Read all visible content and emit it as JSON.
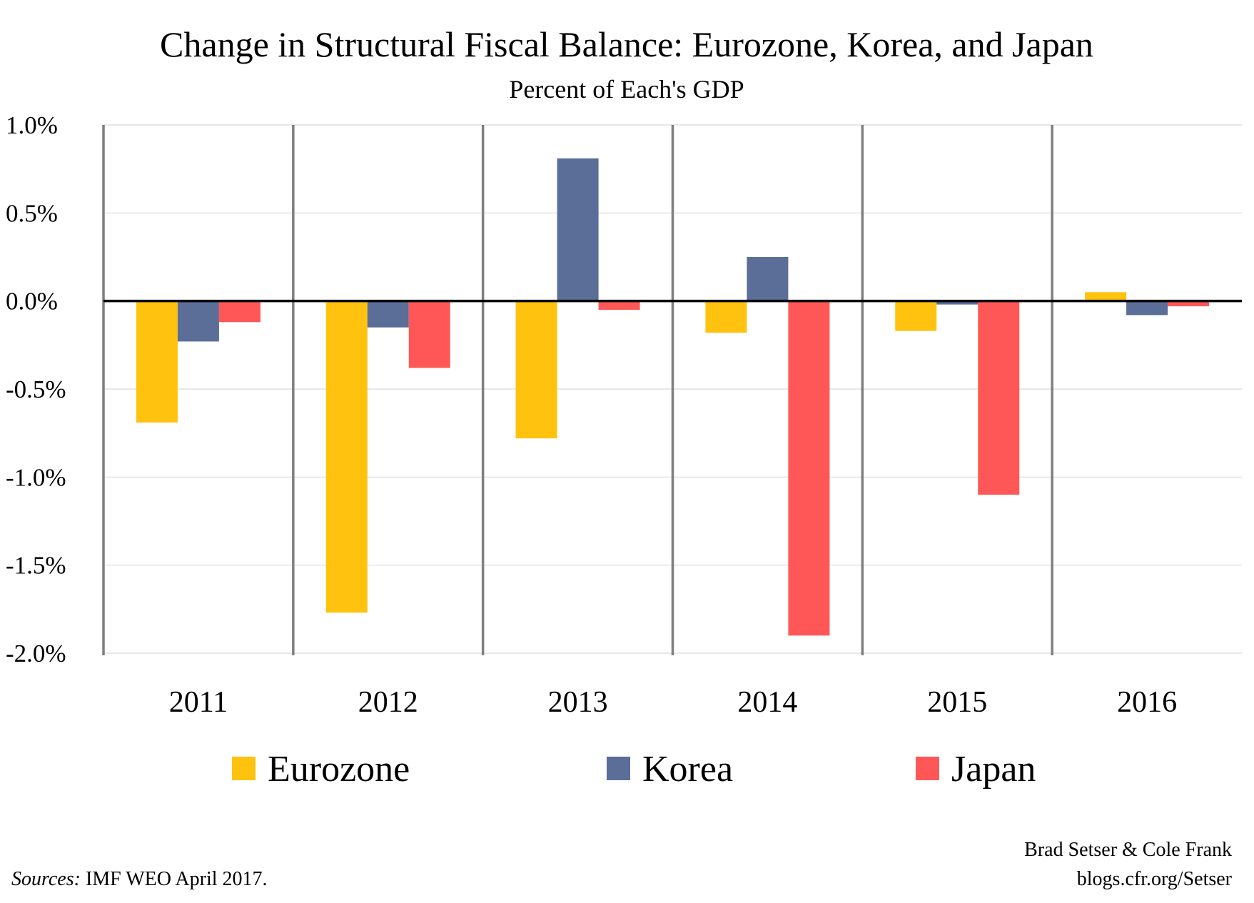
{
  "chart_data": {
    "type": "bar",
    "title": "Change in Structural Fiscal Balance: Eurozone, Korea, and Japan",
    "subtitle": "Percent of Each's GDP",
    "xlabel": "",
    "ylabel": "",
    "categories": [
      "2011",
      "2012",
      "2013",
      "2014",
      "2015",
      "2016"
    ],
    "series": [
      {
        "name": "Eurozone",
        "color": "#FFC20E",
        "values": [
          -0.69,
          -1.77,
          -0.78,
          -0.18,
          -0.17,
          0.05
        ]
      },
      {
        "name": "Korea",
        "color": "#5A6E98",
        "values": [
          -0.23,
          -0.15,
          0.81,
          0.25,
          -0.02,
          -0.08
        ]
      },
      {
        "name": "Japan",
        "color": "#FF5757",
        "values": [
          -0.12,
          -0.38,
          -0.05,
          -1.9,
          -1.1,
          -0.03
        ]
      }
    ],
    "ylim": [
      -2.0,
      1.0
    ],
    "yticks": [
      1.0,
      0.5,
      0.0,
      -0.5,
      -1.0,
      -1.5,
      -2.0
    ],
    "ytick_labels": [
      "1.0%",
      "0.5%",
      "0.0%",
      "-0.5%",
      "-1.0%",
      "-1.5%",
      "-2.0%"
    ],
    "grid": true,
    "legend_position": "bottom"
  },
  "footer": {
    "sources_label": "Sources:",
    "sources_text": " IMF WEO April 2017.",
    "author": "Brad Setser & Cole Frank",
    "url": "blogs.cfr.org/Setser"
  }
}
